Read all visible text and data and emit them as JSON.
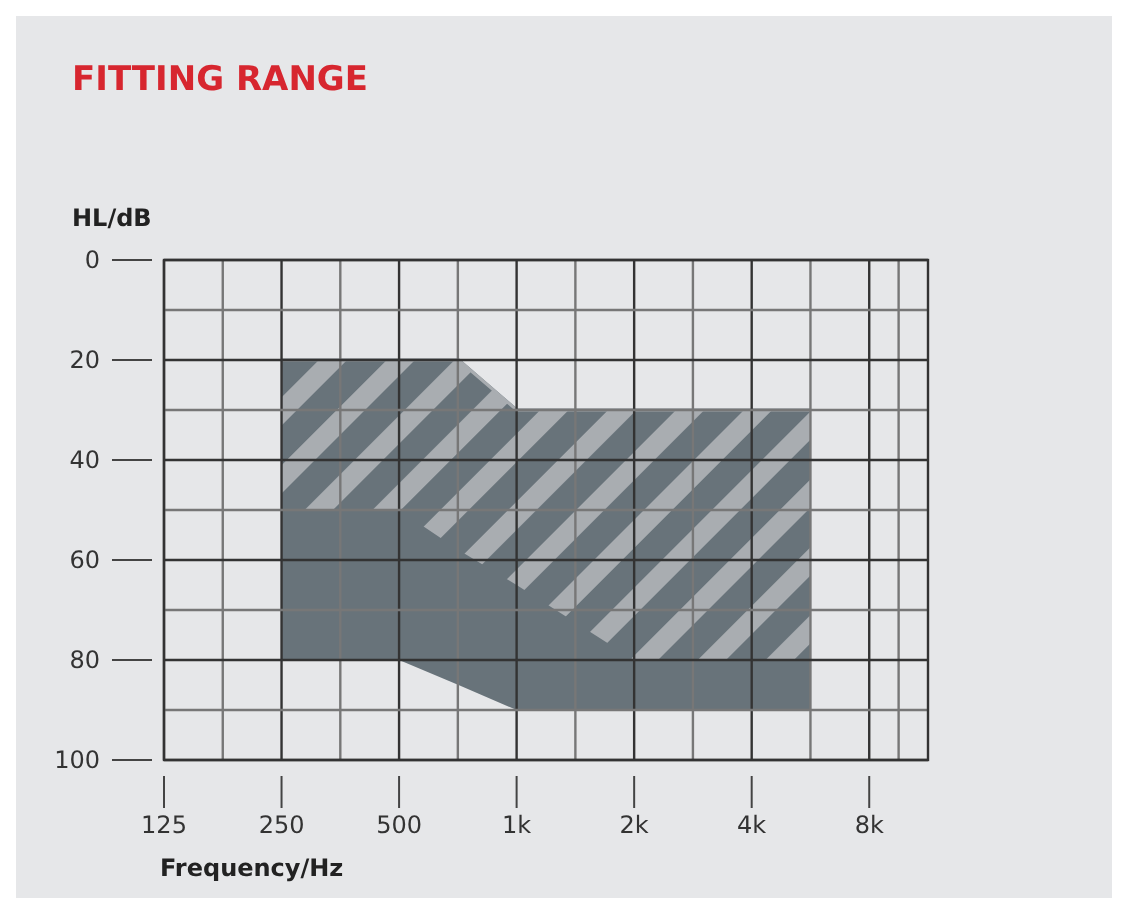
{
  "chart_data": {
    "type": "line",
    "title": "FITTING RANGE",
    "xlabel": "Frequency/Hz",
    "ylabel": "HL/dB",
    "log": "x",
    "grid": true,
    "xlim": [
      125,
      11314
    ],
    "xticks": [
      125,
      250,
      500,
      {
        "value": 1000,
        "label": "1k"
      },
      {
        "value": 2000,
        "label": "2k"
      },
      {
        "value": 4000,
        "label": "4k"
      },
      {
        "value": 8000,
        "label": "8k"
      }
    ],
    "ylim": [
      100,
      0
    ],
    "yticks": [
      0,
      20,
      40,
      60,
      80,
      100
    ],
    "series": [
      {
        "color": "#68737a",
        "x": [
          250,
          500,
          710,
          1000,
          5657
        ],
        "values": [
          20,
          20,
          20,
          30,
          30
        ],
        "lower": [
          20,
          20,
          20,
          30,
          30
        ],
        "upper": [
          80,
          80,
          85,
          90,
          90
        ]
      },
      {
        "color": "#a9adb1",
        "x": [
          250,
          500,
          710,
          1000,
          2000,
          5657
        ],
        "values": [
          20,
          20,
          20,
          30,
          30,
          30
        ],
        "lower": [
          20,
          20,
          20,
          30,
          30,
          30
        ],
        "upper": [
          50,
          50,
          58,
          65,
          80,
          80
        ]
      }
    ]
  }
}
